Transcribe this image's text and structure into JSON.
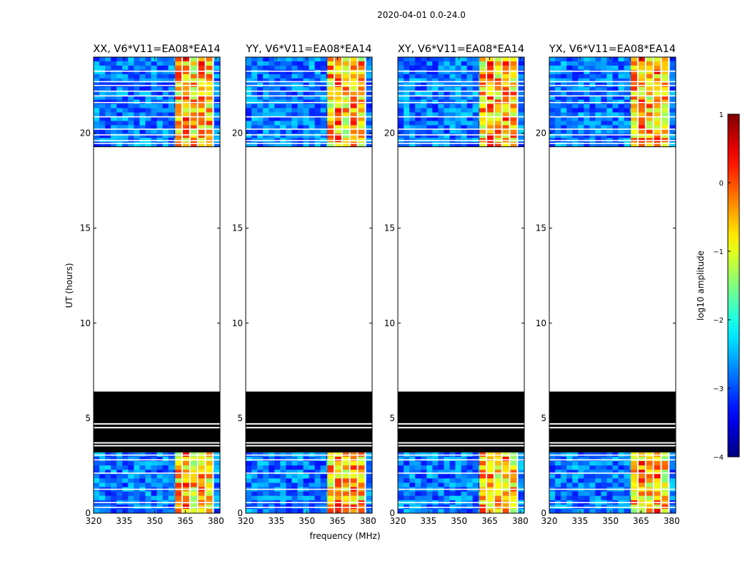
{
  "suptitle": "2020-04-01 0.0-24.0",
  "chart_data": {
    "type": "heatmap",
    "xlabel": "frequency (MHz)",
    "ylabel": "UT (hours)",
    "xlim": [
      320,
      382
    ],
    "ylim": [
      0,
      24
    ],
    "xticks": [
      "320",
      "335",
      "350",
      "365",
      "380"
    ],
    "yticks": [
      "0",
      "5",
      "10",
      "15",
      "20"
    ],
    "panels": [
      {
        "title": "XX, V6*V11=EA08*EA14"
      },
      {
        "title": "YY, V6*V11=EA08*EA14"
      },
      {
        "title": "XY, V6*V11=EA08*EA14"
      },
      {
        "title": "YX, V6*V11=EA08*EA14"
      }
    ],
    "data_bands_hours": [
      [
        0,
        3.2
      ],
      [
        19.3,
        24
      ]
    ],
    "blank_band_hours": [
      [
        6.4,
        19.3
      ]
    ],
    "flagged_black_hours": [
      [
        3.2,
        6.4
      ]
    ],
    "rfi_channels_mhz": [
      360,
      379
    ],
    "colorbar": {
      "label": "log10 amplitude",
      "range": [
        -4,
        1
      ],
      "ticks": [
        "1",
        "0",
        "−1",
        "−2",
        "−3",
        "−4"
      ],
      "colormap": "jet"
    }
  }
}
